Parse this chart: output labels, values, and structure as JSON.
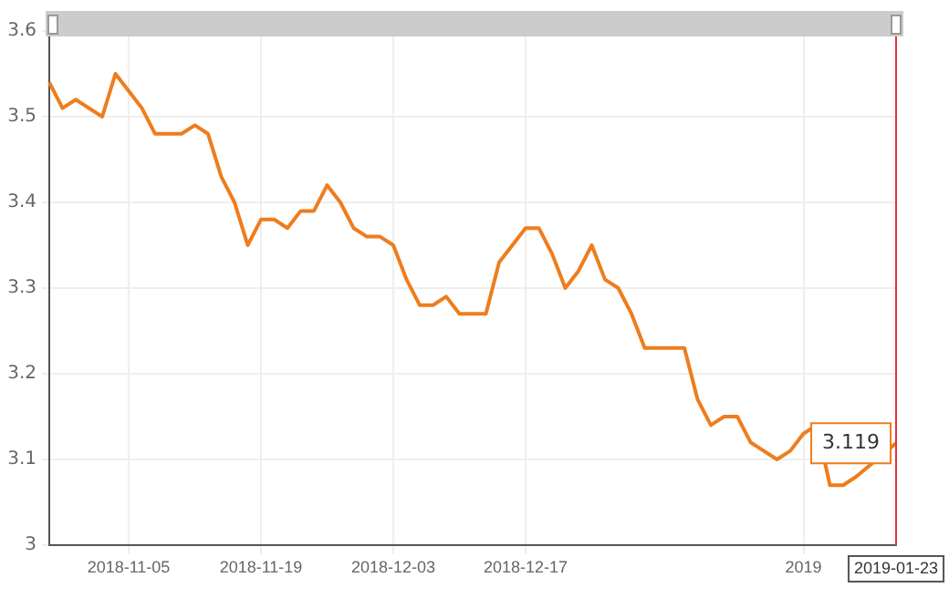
{
  "chart_data": {
    "type": "line",
    "categories": [
      null,
      null,
      null,
      null,
      null,
      null,
      "2018-11-05",
      null,
      null,
      null,
      null,
      null,
      null,
      null,
      null,
      null,
      "2018-11-19",
      null,
      null,
      null,
      null,
      null,
      null,
      null,
      null,
      null,
      "2018-12-03",
      null,
      null,
      null,
      null,
      null,
      null,
      null,
      null,
      null,
      "2018-12-17",
      null,
      null,
      null,
      null,
      null,
      null,
      null,
      null,
      null,
      null,
      null,
      null,
      null,
      null,
      null,
      null,
      null,
      null,
      null,
      null,
      "2019",
      null,
      null,
      null,
      null,
      null,
      null,
      "2019-01-23"
    ],
    "series": [
      {
        "color": "#ee7d1d",
        "values": [
          3.54,
          3.51,
          3.52,
          3.51,
          3.5,
          3.55,
          3.53,
          3.51,
          3.48,
          3.48,
          3.48,
          3.49,
          3.48,
          3.43,
          3.4,
          3.35,
          3.38,
          3.38,
          3.37,
          3.39,
          3.39,
          3.42,
          3.4,
          3.37,
          3.36,
          3.36,
          3.35,
          3.31,
          3.28,
          3.28,
          3.29,
          3.27,
          3.27,
          3.27,
          3.33,
          3.35,
          3.37,
          3.37,
          3.34,
          3.3,
          3.32,
          3.35,
          3.31,
          3.3,
          3.27,
          3.23,
          3.23,
          3.23,
          3.23,
          3.17,
          3.14,
          3.15,
          3.15,
          3.12,
          3.11,
          3.1,
          3.11,
          3.13,
          3.14,
          3.07,
          3.07,
          3.08,
          null,
          null,
          3.119
        ],
        "value_labels": [
          null,
          null,
          null,
          null,
          null,
          null,
          null,
          null,
          null,
          null,
          null,
          null,
          null,
          null,
          null,
          null,
          null,
          null,
          null,
          null,
          null,
          null,
          null,
          null,
          null,
          null,
          null,
          null,
          null,
          null,
          null,
          null,
          null,
          null,
          null,
          null,
          null,
          null,
          null,
          null,
          null,
          null,
          null,
          null,
          null,
          null,
          null,
          null,
          null,
          null,
          null,
          null,
          null,
          null,
          null,
          null,
          null,
          null,
          null,
          null,
          null,
          null,
          null,
          null,
          "3.119"
        ]
      }
    ],
    "ylim": [
      3,
      3.6
    ],
    "yticks": [
      3,
      3.1,
      3.2,
      3.3,
      3.4,
      3.5,
      3.6
    ],
    "grid": true,
    "legend": false,
    "marker": "none",
    "line_style": "solid",
    "ref_lines": [
      {
        "axis": "x",
        "value": "2019-01-23",
        "color": "#e5323e"
      }
    ]
  }
}
